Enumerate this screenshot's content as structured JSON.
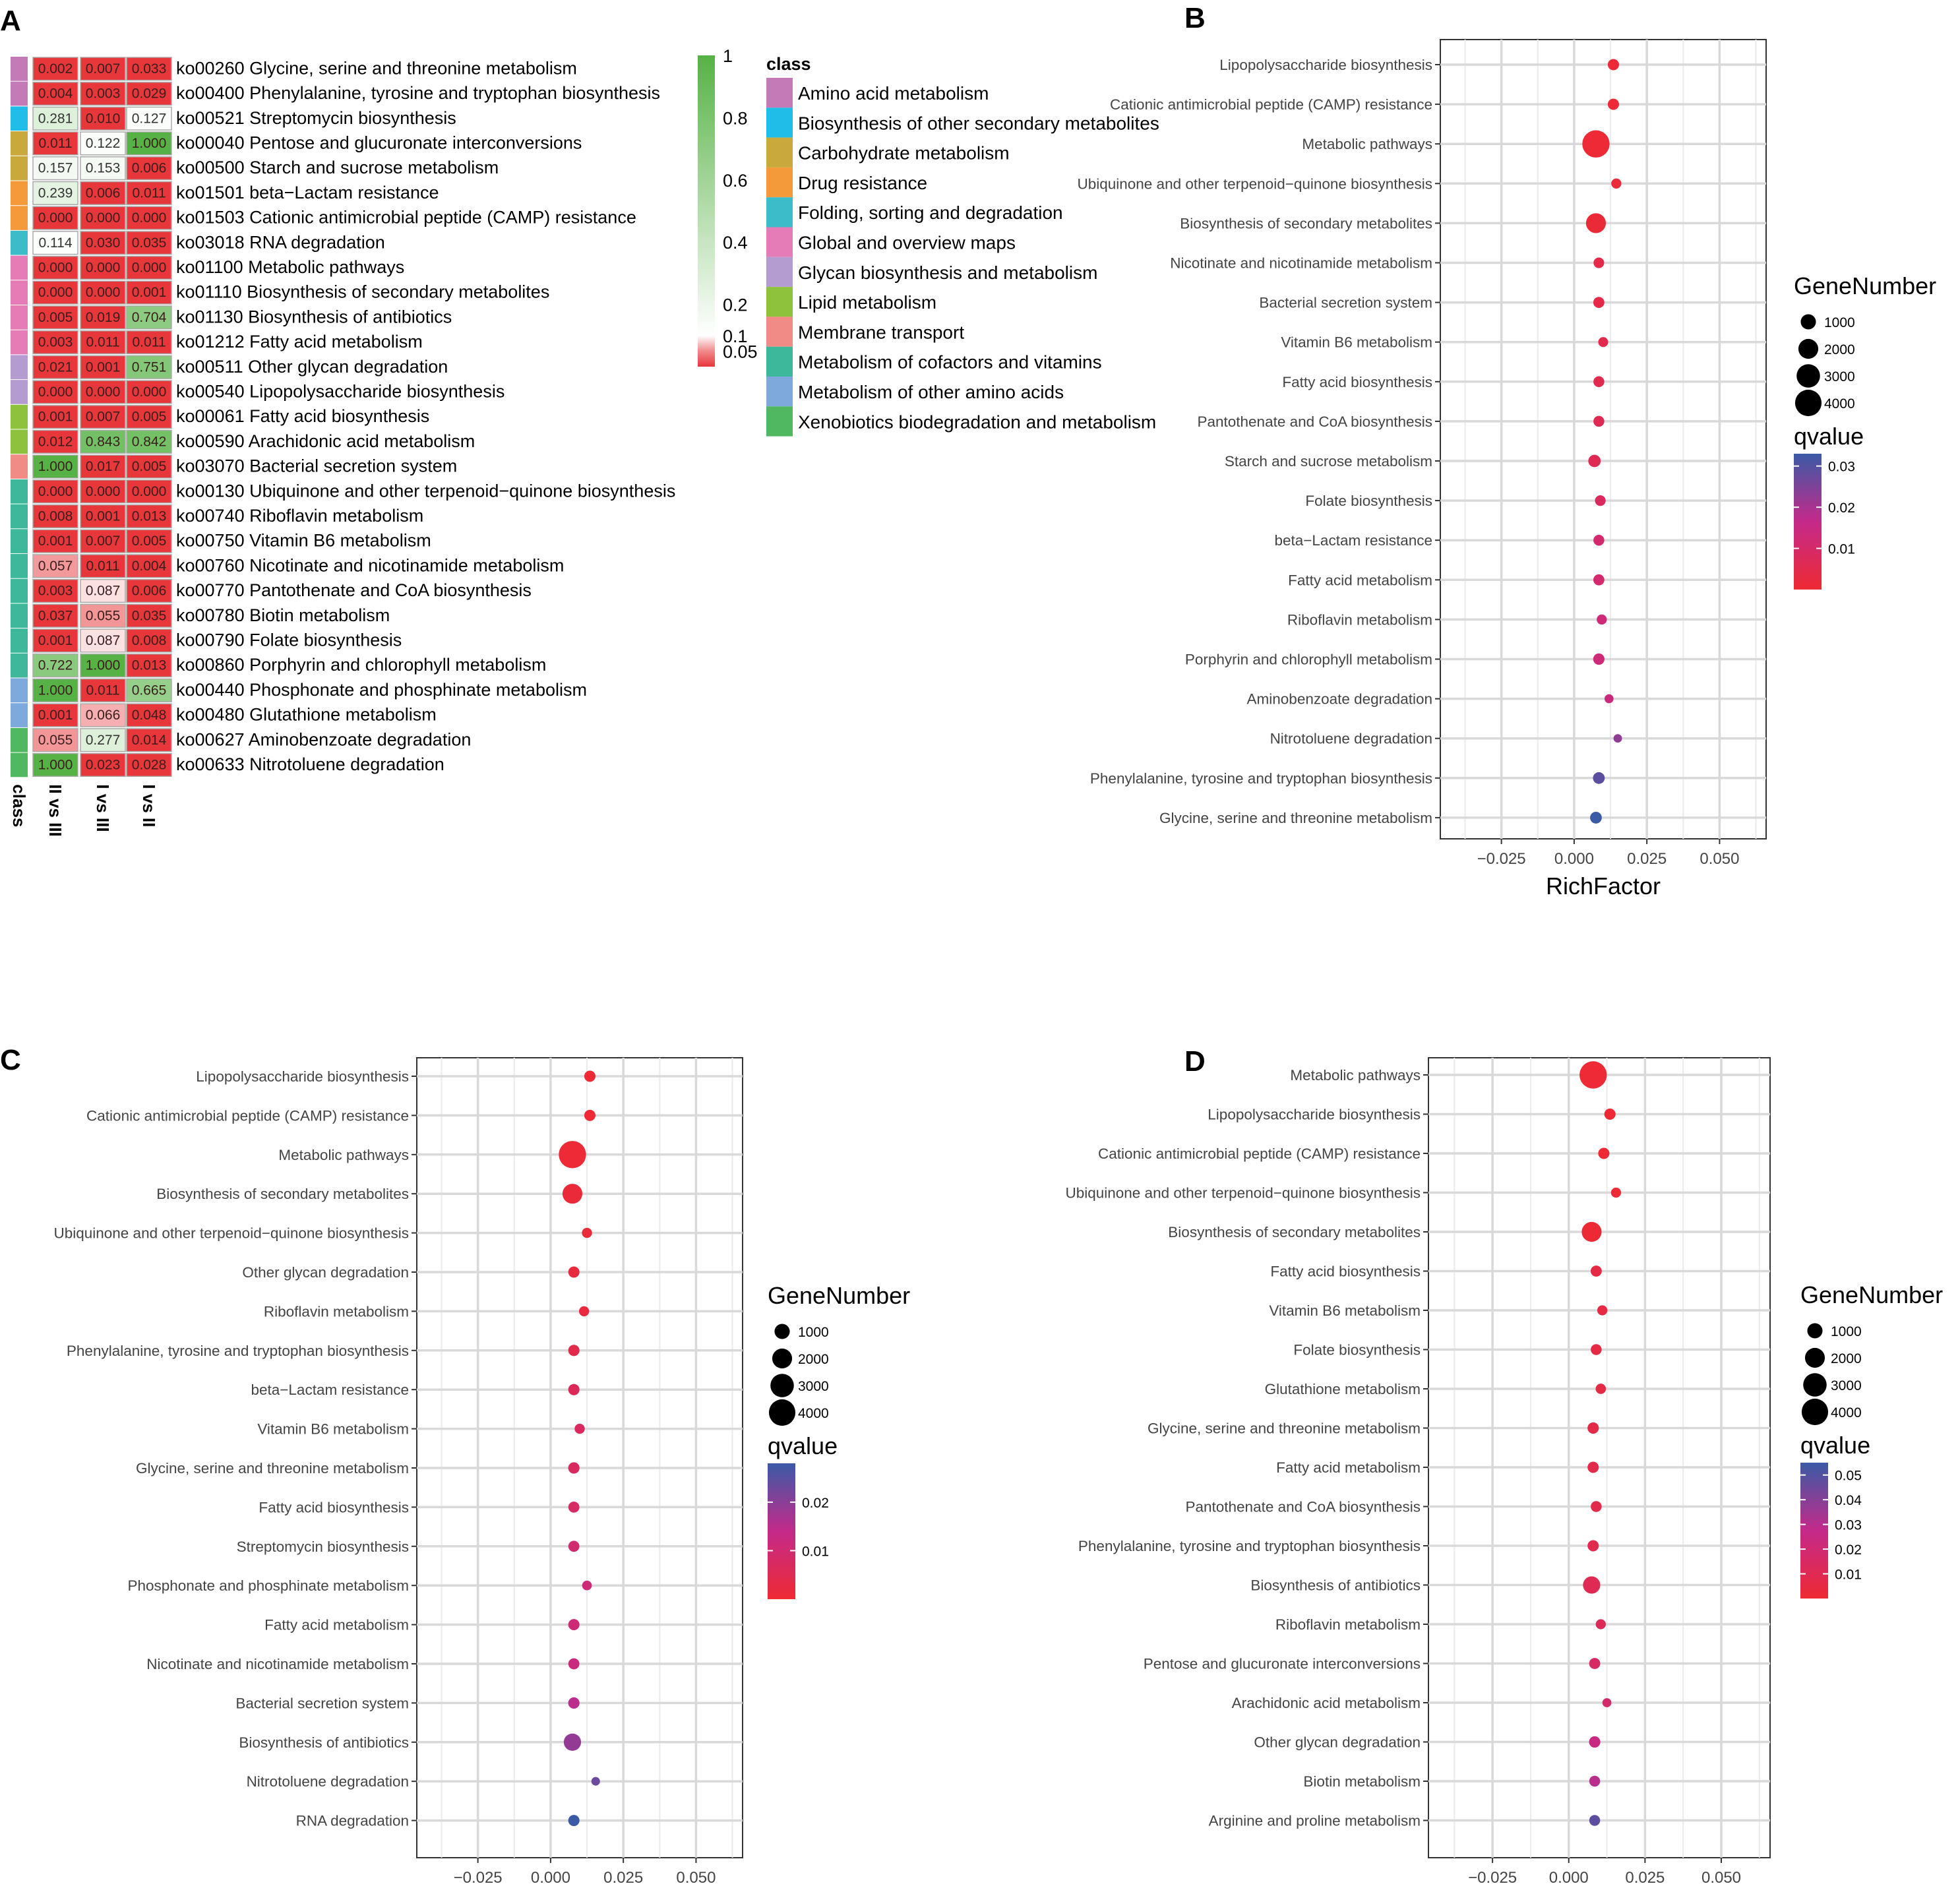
{
  "panel_letters": {
    "a": "A",
    "b": "B",
    "c": "C",
    "d": "D"
  },
  "chart_data": [
    {
      "panel": "A",
      "type": "heatmap",
      "columns": [
        "II vs III",
        "I vs III",
        "I vs II"
      ],
      "class_axis_label": "class",
      "rows": [
        {
          "label": "ko00260 Glycine, serine and threonine metabolism",
          "cls": 0,
          "values": [
            0.002,
            0.007,
            0.033
          ]
        },
        {
          "label": "ko00400 Phenylalanine, tyrosine and tryptophan biosynthesis",
          "cls": 0,
          "values": [
            0.004,
            0.003,
            0.029
          ]
        },
        {
          "label": "ko00521 Streptomycin biosynthesis",
          "cls": 1,
          "values": [
            0.281,
            0.01,
            0.127
          ]
        },
        {
          "label": "ko00040 Pentose and glucuronate interconversions",
          "cls": 2,
          "values": [
            0.011,
            0.122,
            1.0
          ]
        },
        {
          "label": "ko00500 Starch and sucrose metabolism",
          "cls": 2,
          "values": [
            0.157,
            0.153,
            0.006
          ]
        },
        {
          "label": "ko01501 beta−Lactam resistance",
          "cls": 3,
          "values": [
            0.239,
            0.006,
            0.011
          ]
        },
        {
          "label": "ko01503 Cationic antimicrobial peptide (CAMP) resistance",
          "cls": 3,
          "values": [
            0.0,
            0.0,
            0.0
          ]
        },
        {
          "label": "ko03018 RNA degradation",
          "cls": 4,
          "values": [
            0.114,
            0.03,
            0.035
          ]
        },
        {
          "label": "ko01100 Metabolic pathways",
          "cls": 5,
          "values": [
            0.0,
            0.0,
            0.0
          ]
        },
        {
          "label": "ko01110 Biosynthesis of secondary metabolites",
          "cls": 5,
          "values": [
            0.0,
            0.0,
            0.001
          ]
        },
        {
          "label": "ko01130 Biosynthesis of antibiotics",
          "cls": 5,
          "values": [
            0.005,
            0.019,
            0.704
          ]
        },
        {
          "label": "ko01212 Fatty acid metabolism",
          "cls": 5,
          "values": [
            0.003,
            0.011,
            0.011
          ]
        },
        {
          "label": "ko00511 Other glycan degradation",
          "cls": 6,
          "values": [
            0.021,
            0.001,
            0.751
          ]
        },
        {
          "label": "ko00540 Lipopolysaccharide biosynthesis",
          "cls": 6,
          "values": [
            0.0,
            0.0,
            0.0
          ]
        },
        {
          "label": "ko00061 Fatty acid biosynthesis",
          "cls": 7,
          "values": [
            0.001,
            0.007,
            0.005
          ]
        },
        {
          "label": "ko00590 Arachidonic acid metabolism",
          "cls": 7,
          "values": [
            0.012,
            0.843,
            0.842
          ]
        },
        {
          "label": "ko03070 Bacterial secretion system",
          "cls": 8,
          "values": [
            1.0,
            0.017,
            0.005
          ]
        },
        {
          "label": "ko00130 Ubiquinone and other terpenoid−quinone biosynthesis",
          "cls": 9,
          "values": [
            0.0,
            0.0,
            0.0
          ]
        },
        {
          "label": "ko00740 Riboflavin metabolism",
          "cls": 9,
          "values": [
            0.008,
            0.001,
            0.013
          ]
        },
        {
          "label": "ko00750 Vitamin B6 metabolism",
          "cls": 9,
          "values": [
            0.001,
            0.007,
            0.005
          ]
        },
        {
          "label": "ko00760 Nicotinate and nicotinamide metabolism",
          "cls": 9,
          "values": [
            0.057,
            0.011,
            0.004
          ]
        },
        {
          "label": "ko00770 Pantothenate and CoA biosynthesis",
          "cls": 9,
          "values": [
            0.003,
            0.087,
            0.006
          ]
        },
        {
          "label": "ko00780 Biotin metabolism",
          "cls": 9,
          "values": [
            0.037,
            0.055,
            0.035
          ]
        },
        {
          "label": "ko00790 Folate biosynthesis",
          "cls": 9,
          "values": [
            0.001,
            0.087,
            0.008
          ]
        },
        {
          "label": "ko00860 Porphyrin and chlorophyll metabolism",
          "cls": 9,
          "values": [
            0.722,
            1.0,
            0.013
          ]
        },
        {
          "label": "ko00440 Phosphonate and phosphinate metabolism",
          "cls": 10,
          "values": [
            1.0,
            0.011,
            0.665
          ]
        },
        {
          "label": "ko00480 Glutathione metabolism",
          "cls": 10,
          "values": [
            0.001,
            0.066,
            0.048
          ]
        },
        {
          "label": "ko00627 Aminobenzoate degradation",
          "cls": 11,
          "values": [
            0.055,
            0.277,
            0.014
          ]
        },
        {
          "label": "ko00633 Nitrotoluene degradation",
          "cls": 11,
          "values": [
            1.0,
            0.023,
            0.028
          ]
        }
      ],
      "colorbar": {
        "ticks": [
          1,
          0.8,
          0.6,
          0.4,
          0.2,
          0.1,
          0.05
        ],
        "tick_labels": [
          "1",
          "0.8",
          "0.6",
          "0.4",
          "0.2",
          "0.1",
          "0.05"
        ],
        "low": "#e8212b",
        "mid": "#ffffff",
        "high": "#56b244"
      },
      "class_legend_title": "class",
      "classes": [
        {
          "name": "Amino acid metabolism",
          "color": "#c47ab6"
        },
        {
          "name": "Biosynthesis of other secondary metabolites",
          "color": "#20bde8"
        },
        {
          "name": "Carbohydrate metabolism",
          "color": "#c9a83c"
        },
        {
          "name": "Drug resistance",
          "color": "#f49a3b"
        },
        {
          "name": "Folding, sorting and degradation",
          "color": "#3cbcc8"
        },
        {
          "name": "Global and overview maps",
          "color": "#e57cb7"
        },
        {
          "name": "Glycan biosynthesis and metabolism",
          "color": "#b49cd0"
        },
        {
          "name": "Lipid metabolism",
          "color": "#8fc23c"
        },
        {
          "name": "Membrane transport",
          "color": "#f08b86"
        },
        {
          "name": "Metabolism of cofactors and vitamins",
          "color": "#3db89a"
        },
        {
          "name": "Metabolism of other amino acids",
          "color": "#7ea9dc"
        },
        {
          "name": "Xenobiotics biodegradation and metabolism",
          "color": "#4fb860"
        }
      ]
    },
    {
      "panel": "B",
      "type": "scatter",
      "xlabel": "RichFactor",
      "xlim": [
        -0.046,
        0.066
      ],
      "xticks": [
        -0.025,
        0.0,
        0.025,
        0.05
      ],
      "xtick_labels": [
        "−0.025",
        "0.000",
        "0.025",
        "0.050"
      ],
      "size_legend": {
        "title": "GeneNumber",
        "values": [
          1000,
          2000,
          3000,
          4000
        ],
        "labels": [
          "1000",
          "2000",
          "3000",
          "4000"
        ]
      },
      "color_legend": {
        "title": "qvalue",
        "min": 0.0,
        "max": 0.033,
        "ticks": [
          0.03,
          0.02,
          0.01
        ],
        "tick_labels": [
          "0.03",
          "0.02",
          "0.01"
        ]
      },
      "points": [
        {
          "term": "Lipopolysaccharide biosynthesis",
          "x": 0.0135,
          "size": 420,
          "q": 0.0005
        },
        {
          "term": "Cationic antimicrobial peptide (CAMP) resistance",
          "x": 0.0135,
          "size": 420,
          "q": 0.0005
        },
        {
          "term": "Metabolic pathways",
          "x": 0.0075,
          "size": 4300,
          "q": 0.0005
        },
        {
          "term": "Ubiquinone and other terpenoid−quinone biosynthesis",
          "x": 0.0145,
          "size": 300,
          "q": 0.0015
        },
        {
          "term": "Biosynthesis of secondary metabolites",
          "x": 0.0075,
          "size": 2000,
          "q": 0.001
        },
        {
          "term": "Nicotinate and nicotinamide metabolism",
          "x": 0.0085,
          "size": 350,
          "q": 0.004
        },
        {
          "term": "Bacterial secretion system",
          "x": 0.0085,
          "size": 400,
          "q": 0.004
        },
        {
          "term": "Vitamin B6 metabolism",
          "x": 0.01,
          "size": 280,
          "q": 0.005
        },
        {
          "term": "Fatty acid biosynthesis",
          "x": 0.0085,
          "size": 380,
          "q": 0.005
        },
        {
          "term": "Pantothenate and CoA biosynthesis",
          "x": 0.0085,
          "size": 380,
          "q": 0.006
        },
        {
          "term": "Starch and sucrose metabolism",
          "x": 0.007,
          "size": 560,
          "q": 0.006
        },
        {
          "term": "Folate biosynthesis",
          "x": 0.009,
          "size": 360,
          "q": 0.008
        },
        {
          "term": "beta−Lactam resistance",
          "x": 0.0085,
          "size": 380,
          "q": 0.011
        },
        {
          "term": "Fatty acid metabolism",
          "x": 0.0085,
          "size": 400,
          "q": 0.011
        },
        {
          "term": "Riboflavin metabolism",
          "x": 0.0095,
          "size": 300,
          "q": 0.013
        },
        {
          "term": "Porphyrin and chlorophyll metabolism",
          "x": 0.0085,
          "size": 430,
          "q": 0.013
        },
        {
          "term": "Aminobenzoate degradation",
          "x": 0.012,
          "size": 200,
          "q": 0.014
        },
        {
          "term": "Nitrotoluene degradation",
          "x": 0.015,
          "size": 160,
          "q": 0.023
        },
        {
          "term": "Phenylalanine, tyrosine and tryptophan biosynthesis",
          "x": 0.0085,
          "size": 480,
          "q": 0.029
        },
        {
          "term": "Glycine, serine and threonine metabolism",
          "x": 0.0075,
          "size": 480,
          "q": 0.033
        }
      ]
    },
    {
      "panel": "C",
      "type": "scatter",
      "xlabel": "RichFactor",
      "xlim": [
        -0.046,
        0.066
      ],
      "xticks": [
        -0.025,
        0.0,
        0.025,
        0.05
      ],
      "xtick_labels": [
        "−0.025",
        "0.000",
        "0.025",
        "0.050"
      ],
      "size_legend": {
        "title": "GeneNumber",
        "values": [
          1000,
          2000,
          3000,
          4000
        ],
        "labels": [
          "1000",
          "2000",
          "3000",
          "4000"
        ]
      },
      "color_legend": {
        "title": "qvalue",
        "min": 0.0,
        "max": 0.028,
        "ticks": [
          0.02,
          0.01
        ],
        "tick_labels": [
          "0.02",
          "0.01"
        ]
      },
      "points": [
        {
          "term": "Lipopolysaccharide biosynthesis",
          "x": 0.0135,
          "size": 420,
          "q": 0.0005
        },
        {
          "term": "Cationic antimicrobial peptide (CAMP) resistance",
          "x": 0.0135,
          "size": 420,
          "q": 0.0005
        },
        {
          "term": "Metabolic pathways",
          "x": 0.0075,
          "size": 4300,
          "q": 0.0005
        },
        {
          "term": "Biosynthesis of secondary metabolites",
          "x": 0.0075,
          "size": 2000,
          "q": 0.001
        },
        {
          "term": "Ubiquinone and other terpenoid−quinone biosynthesis",
          "x": 0.0125,
          "size": 300,
          "q": 0.001
        },
        {
          "term": "Other glycan degradation",
          "x": 0.008,
          "size": 420,
          "q": 0.002
        },
        {
          "term": "Riboflavin metabolism",
          "x": 0.0115,
          "size": 300,
          "q": 0.002
        },
        {
          "term": "Phenylalanine, tyrosine and tryptophan biosynthesis",
          "x": 0.008,
          "size": 420,
          "q": 0.004
        },
        {
          "term": "beta−Lactam resistance",
          "x": 0.008,
          "size": 420,
          "q": 0.006
        },
        {
          "term": "Vitamin B6 metabolism",
          "x": 0.01,
          "size": 300,
          "q": 0.007
        },
        {
          "term": "Glycine, serine and threonine metabolism",
          "x": 0.008,
          "size": 430,
          "q": 0.007
        },
        {
          "term": "Fatty acid biosynthesis",
          "x": 0.008,
          "size": 400,
          "q": 0.008
        },
        {
          "term": "Streptomycin biosynthesis",
          "x": 0.008,
          "size": 400,
          "q": 0.01
        },
        {
          "term": "Phosphonate and phosphinate metabolism",
          "x": 0.0125,
          "size": 260,
          "q": 0.011
        },
        {
          "term": "Fatty acid metabolism",
          "x": 0.008,
          "size": 420,
          "q": 0.011
        },
        {
          "term": "Nicotinate and nicotinamide metabolism",
          "x": 0.008,
          "size": 400,
          "q": 0.012
        },
        {
          "term": "Bacterial secretion system",
          "x": 0.008,
          "size": 430,
          "q": 0.015
        },
        {
          "term": "Biosynthesis of antibiotics",
          "x": 0.0075,
          "size": 1400,
          "q": 0.019
        },
        {
          "term": "Nitrotoluene degradation",
          "x": 0.0155,
          "size": 170,
          "q": 0.023
        },
        {
          "term": "RNA degradation",
          "x": 0.008,
          "size": 420,
          "q": 0.03
        }
      ]
    },
    {
      "panel": "D",
      "type": "scatter",
      "xlabel": "RichFactor",
      "xlim": [
        -0.046,
        0.066
      ],
      "xticks": [
        -0.025,
        0.0,
        0.025,
        0.05
      ],
      "xtick_labels": [
        "−0.025",
        "0.000",
        "0.025",
        "0.050"
      ],
      "size_legend": {
        "title": "GeneNumber",
        "values": [
          1000,
          2000,
          3000,
          4000
        ],
        "labels": [
          "1000",
          "2000",
          "3000",
          "4000"
        ]
      },
      "color_legend": {
        "title": "qvalue",
        "min": 0.0,
        "max": 0.055,
        "ticks": [
          0.05,
          0.04,
          0.03,
          0.02,
          0.01
        ],
        "tick_labels": [
          "0.05",
          "0.04",
          "0.03",
          "0.02",
          "0.01"
        ]
      },
      "points": [
        {
          "term": "Metabolic pathways",
          "x": 0.008,
          "size": 4300,
          "q": 0.0005
        },
        {
          "term": "Lipopolysaccharide biosynthesis",
          "x": 0.0135,
          "size": 420,
          "q": 0.0005
        },
        {
          "term": "Cationic antimicrobial peptide (CAMP) resistance",
          "x": 0.0115,
          "size": 420,
          "q": 0.0005
        },
        {
          "term": "Ubiquinone and other terpenoid−quinone biosynthesis",
          "x": 0.0155,
          "size": 300,
          "q": 0.0005
        },
        {
          "term": "Biosynthesis of secondary metabolites",
          "x": 0.0075,
          "size": 2000,
          "q": 0.001
        },
        {
          "term": "Fatty acid biosynthesis",
          "x": 0.009,
          "size": 400,
          "q": 0.005
        },
        {
          "term": "Vitamin B6 metabolism",
          "x": 0.011,
          "size": 300,
          "q": 0.005
        },
        {
          "term": "Folate biosynthesis",
          "x": 0.009,
          "size": 380,
          "q": 0.006
        },
        {
          "term": "Glutathione metabolism",
          "x": 0.0105,
          "size": 320,
          "q": 0.006
        },
        {
          "term": "Glycine, serine and threonine metabolism",
          "x": 0.008,
          "size": 430,
          "q": 0.007
        },
        {
          "term": "Fatty acid metabolism",
          "x": 0.008,
          "size": 420,
          "q": 0.008
        },
        {
          "term": "Pantothenate and CoA biosynthesis",
          "x": 0.009,
          "size": 380,
          "q": 0.008
        },
        {
          "term": "Phenylalanine, tyrosine and tryptophan biosynthesis",
          "x": 0.008,
          "size": 420,
          "q": 0.009
        },
        {
          "term": "Biosynthesis of antibiotics",
          "x": 0.0075,
          "size": 1400,
          "q": 0.01
        },
        {
          "term": "Riboflavin metabolism",
          "x": 0.0105,
          "size": 300,
          "q": 0.012
        },
        {
          "term": "Pentose and glucuronate interconversions",
          "x": 0.0085,
          "size": 400,
          "q": 0.015
        },
        {
          "term": "Arachidonic acid metabolism",
          "x": 0.0125,
          "size": 200,
          "q": 0.018
        },
        {
          "term": "Other glycan degradation",
          "x": 0.0085,
          "size": 430,
          "q": 0.025
        },
        {
          "term": "Biotin metabolism",
          "x": 0.0085,
          "size": 380,
          "q": 0.03
        },
        {
          "term": "Arginine and proline metabolism",
          "x": 0.0085,
          "size": 380,
          "q": 0.048
        }
      ]
    }
  ]
}
